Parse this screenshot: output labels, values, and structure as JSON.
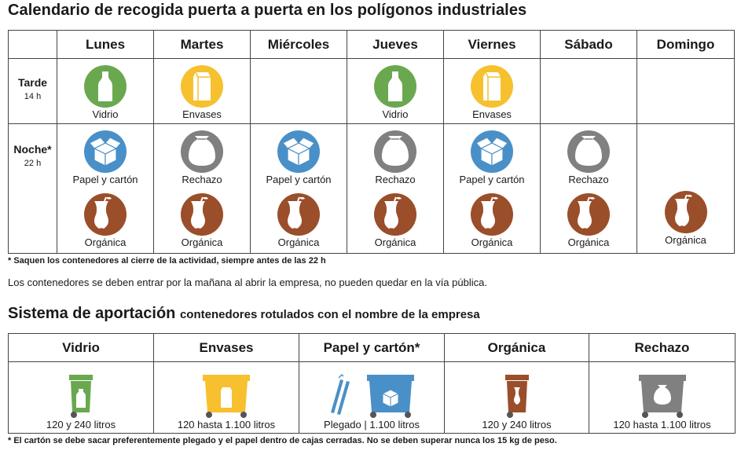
{
  "title": "Calendario de recogida puerta a puerta en los polígonos industriales",
  "calendar": {
    "days": [
      "Lunes",
      "Martes",
      "Miércoles",
      "Jueves",
      "Viernes",
      "Sábado",
      "Domingo"
    ],
    "tarde": {
      "label": "Tarde",
      "time": "14 h"
    },
    "noche": {
      "label": "Noche",
      "asterisk": "*",
      "time": "22 h"
    },
    "labels": {
      "vidrio": "Vidrio",
      "envases": "Envases",
      "papel": "Papel y cartón",
      "rechazo": "Rechazo",
      "organica": "Orgánica"
    }
  },
  "colors": {
    "vidrio": "#6aa84f",
    "envases": "#f6c02e",
    "papel": "#4a90c8",
    "rechazo": "#808080",
    "organica": "#9a4e2a"
  },
  "note1": "* Saquen los contenedores al cierre de la actividad, siempre antes de las 22 h",
  "note2": "Los contenedores se deben entrar por la mañana al abrir la empresa, no pueden quedar en la vía pública.",
  "system": {
    "title": "Sistema de aportación",
    "subtitle": "contenedores rotulados con el nombre de la empresa",
    "columns": [
      {
        "name": "Vidrio",
        "desc": "120 y 240 litros"
      },
      {
        "name": "Envases",
        "desc": "120 hasta 1.100 litros"
      },
      {
        "name": "Papel y cartón",
        "asterisk": "*",
        "desc": "Plegado | 1.100 litros"
      },
      {
        "name": "Orgánica",
        "desc": "120 y 240 litros"
      },
      {
        "name": "Rechazo",
        "desc": "120 hasta 1.100 litros"
      }
    ]
  },
  "note3": "* El cartón se debe sacar preferentemente plegado y el papel dentro de cajas cerradas. No se deben superar nunca los 15 kg de peso."
}
